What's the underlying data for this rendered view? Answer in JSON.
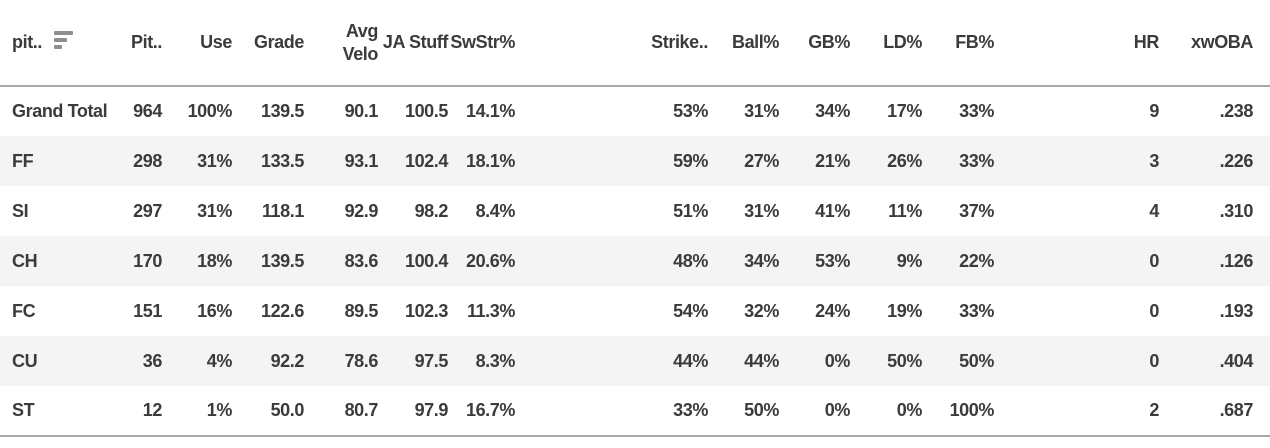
{
  "table": {
    "colors": {
      "text": "#3b3b3b",
      "stripe": "#f4f4f4",
      "border": "#a8a8a8",
      "sort_icon": "#8f8f8f"
    },
    "sort_icon": "sort-descending-icon",
    "columns": [
      {
        "key": "pitch_type",
        "label": "pit.."
      },
      {
        "key": "pitches",
        "label": "Pit.."
      },
      {
        "key": "use",
        "label": "Use"
      },
      {
        "key": "grade",
        "label": "Grade"
      },
      {
        "key": "avg_velo",
        "label": "Avg\nVelo"
      },
      {
        "key": "ja_stuff",
        "label": "JA Stuff"
      },
      {
        "key": "swstr_pct",
        "label": "SwStr%"
      },
      {
        "key": "strike_pct",
        "label": "Strike.."
      },
      {
        "key": "ball_pct",
        "label": "Ball%"
      },
      {
        "key": "gb_pct",
        "label": "GB%"
      },
      {
        "key": "ld_pct",
        "label": "LD%"
      },
      {
        "key": "fb_pct",
        "label": "FB%"
      },
      {
        "key": "hr",
        "label": "HR"
      },
      {
        "key": "xwoba",
        "label": "xwOBA"
      }
    ],
    "rows": [
      [
        "Grand Total",
        "964",
        "100%",
        "139.5",
        "90.1",
        "100.5",
        "14.1%",
        "53%",
        "31%",
        "34%",
        "17%",
        "33%",
        "9",
        ".238"
      ],
      [
        "FF",
        "298",
        "31%",
        "133.5",
        "93.1",
        "102.4",
        "18.1%",
        "59%",
        "27%",
        "21%",
        "26%",
        "33%",
        "3",
        ".226"
      ],
      [
        "SI",
        "297",
        "31%",
        "118.1",
        "92.9",
        "98.2",
        "8.4%",
        "51%",
        "31%",
        "41%",
        "11%",
        "37%",
        "4",
        ".310"
      ],
      [
        "CH",
        "170",
        "18%",
        "139.5",
        "83.6",
        "100.4",
        "20.6%",
        "48%",
        "34%",
        "53%",
        "9%",
        "22%",
        "0",
        ".126"
      ],
      [
        "FC",
        "151",
        "16%",
        "122.6",
        "89.5",
        "102.3",
        "11.3%",
        "54%",
        "32%",
        "24%",
        "19%",
        "33%",
        "0",
        ".193"
      ],
      [
        "CU",
        "36",
        "4%",
        "92.2",
        "78.6",
        "97.5",
        "8.3%",
        "44%",
        "44%",
        "0%",
        "50%",
        "50%",
        "0",
        ".404"
      ],
      [
        "ST",
        "12",
        "1%",
        "50.0",
        "80.7",
        "97.9",
        "16.7%",
        "33%",
        "50%",
        "0%",
        "0%",
        "100%",
        "2",
        ".687"
      ]
    ]
  }
}
